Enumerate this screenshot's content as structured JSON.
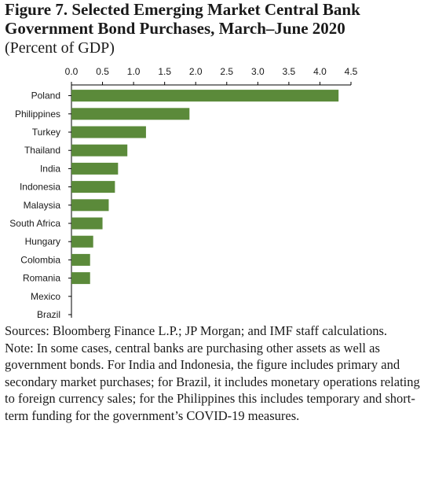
{
  "figure": {
    "title": "Figure 7. Selected Emerging Market Central Bank Government Bond Purchases, March–June 2020",
    "subtitle": "(Percent of GDP)",
    "sources": "Sources: Bloomberg Finance L.P.; JP Morgan; and IMF staff calculations.",
    "note": "Note: In some cases, central banks are purchasing other assets as well as government bonds. For India and Indonesia, the figure includes primary and secondary market purchases; for Brazil, it includes monetary operations relating to foreign currency sales; for the Philippines this includes temporary and short-term funding for the government’s COVID-19 measures."
  },
  "chart_data": {
    "type": "bar",
    "orientation": "horizontal",
    "categories": [
      "Poland",
      "Philippines",
      "Turkey",
      "Thailand",
      "India",
      "Indonesia",
      "Malaysia",
      "South Africa",
      "Hungary",
      "Colombia",
      "Romania",
      "Mexico",
      "Brazil"
    ],
    "values": [
      4.3,
      1.9,
      1.2,
      0.9,
      0.75,
      0.7,
      0.6,
      0.5,
      0.35,
      0.3,
      0.3,
      0.0,
      0.0
    ],
    "xlim": [
      0,
      4.5
    ],
    "xticks": [
      "0.0",
      "0.5",
      "1.0",
      "1.5",
      "2.0",
      "2.5",
      "3.0",
      "3.5",
      "4.0",
      "4.5"
    ],
    "xaxis_position": "top",
    "bar_color": "#5b8a3a",
    "grid": false,
    "legend": "none"
  }
}
